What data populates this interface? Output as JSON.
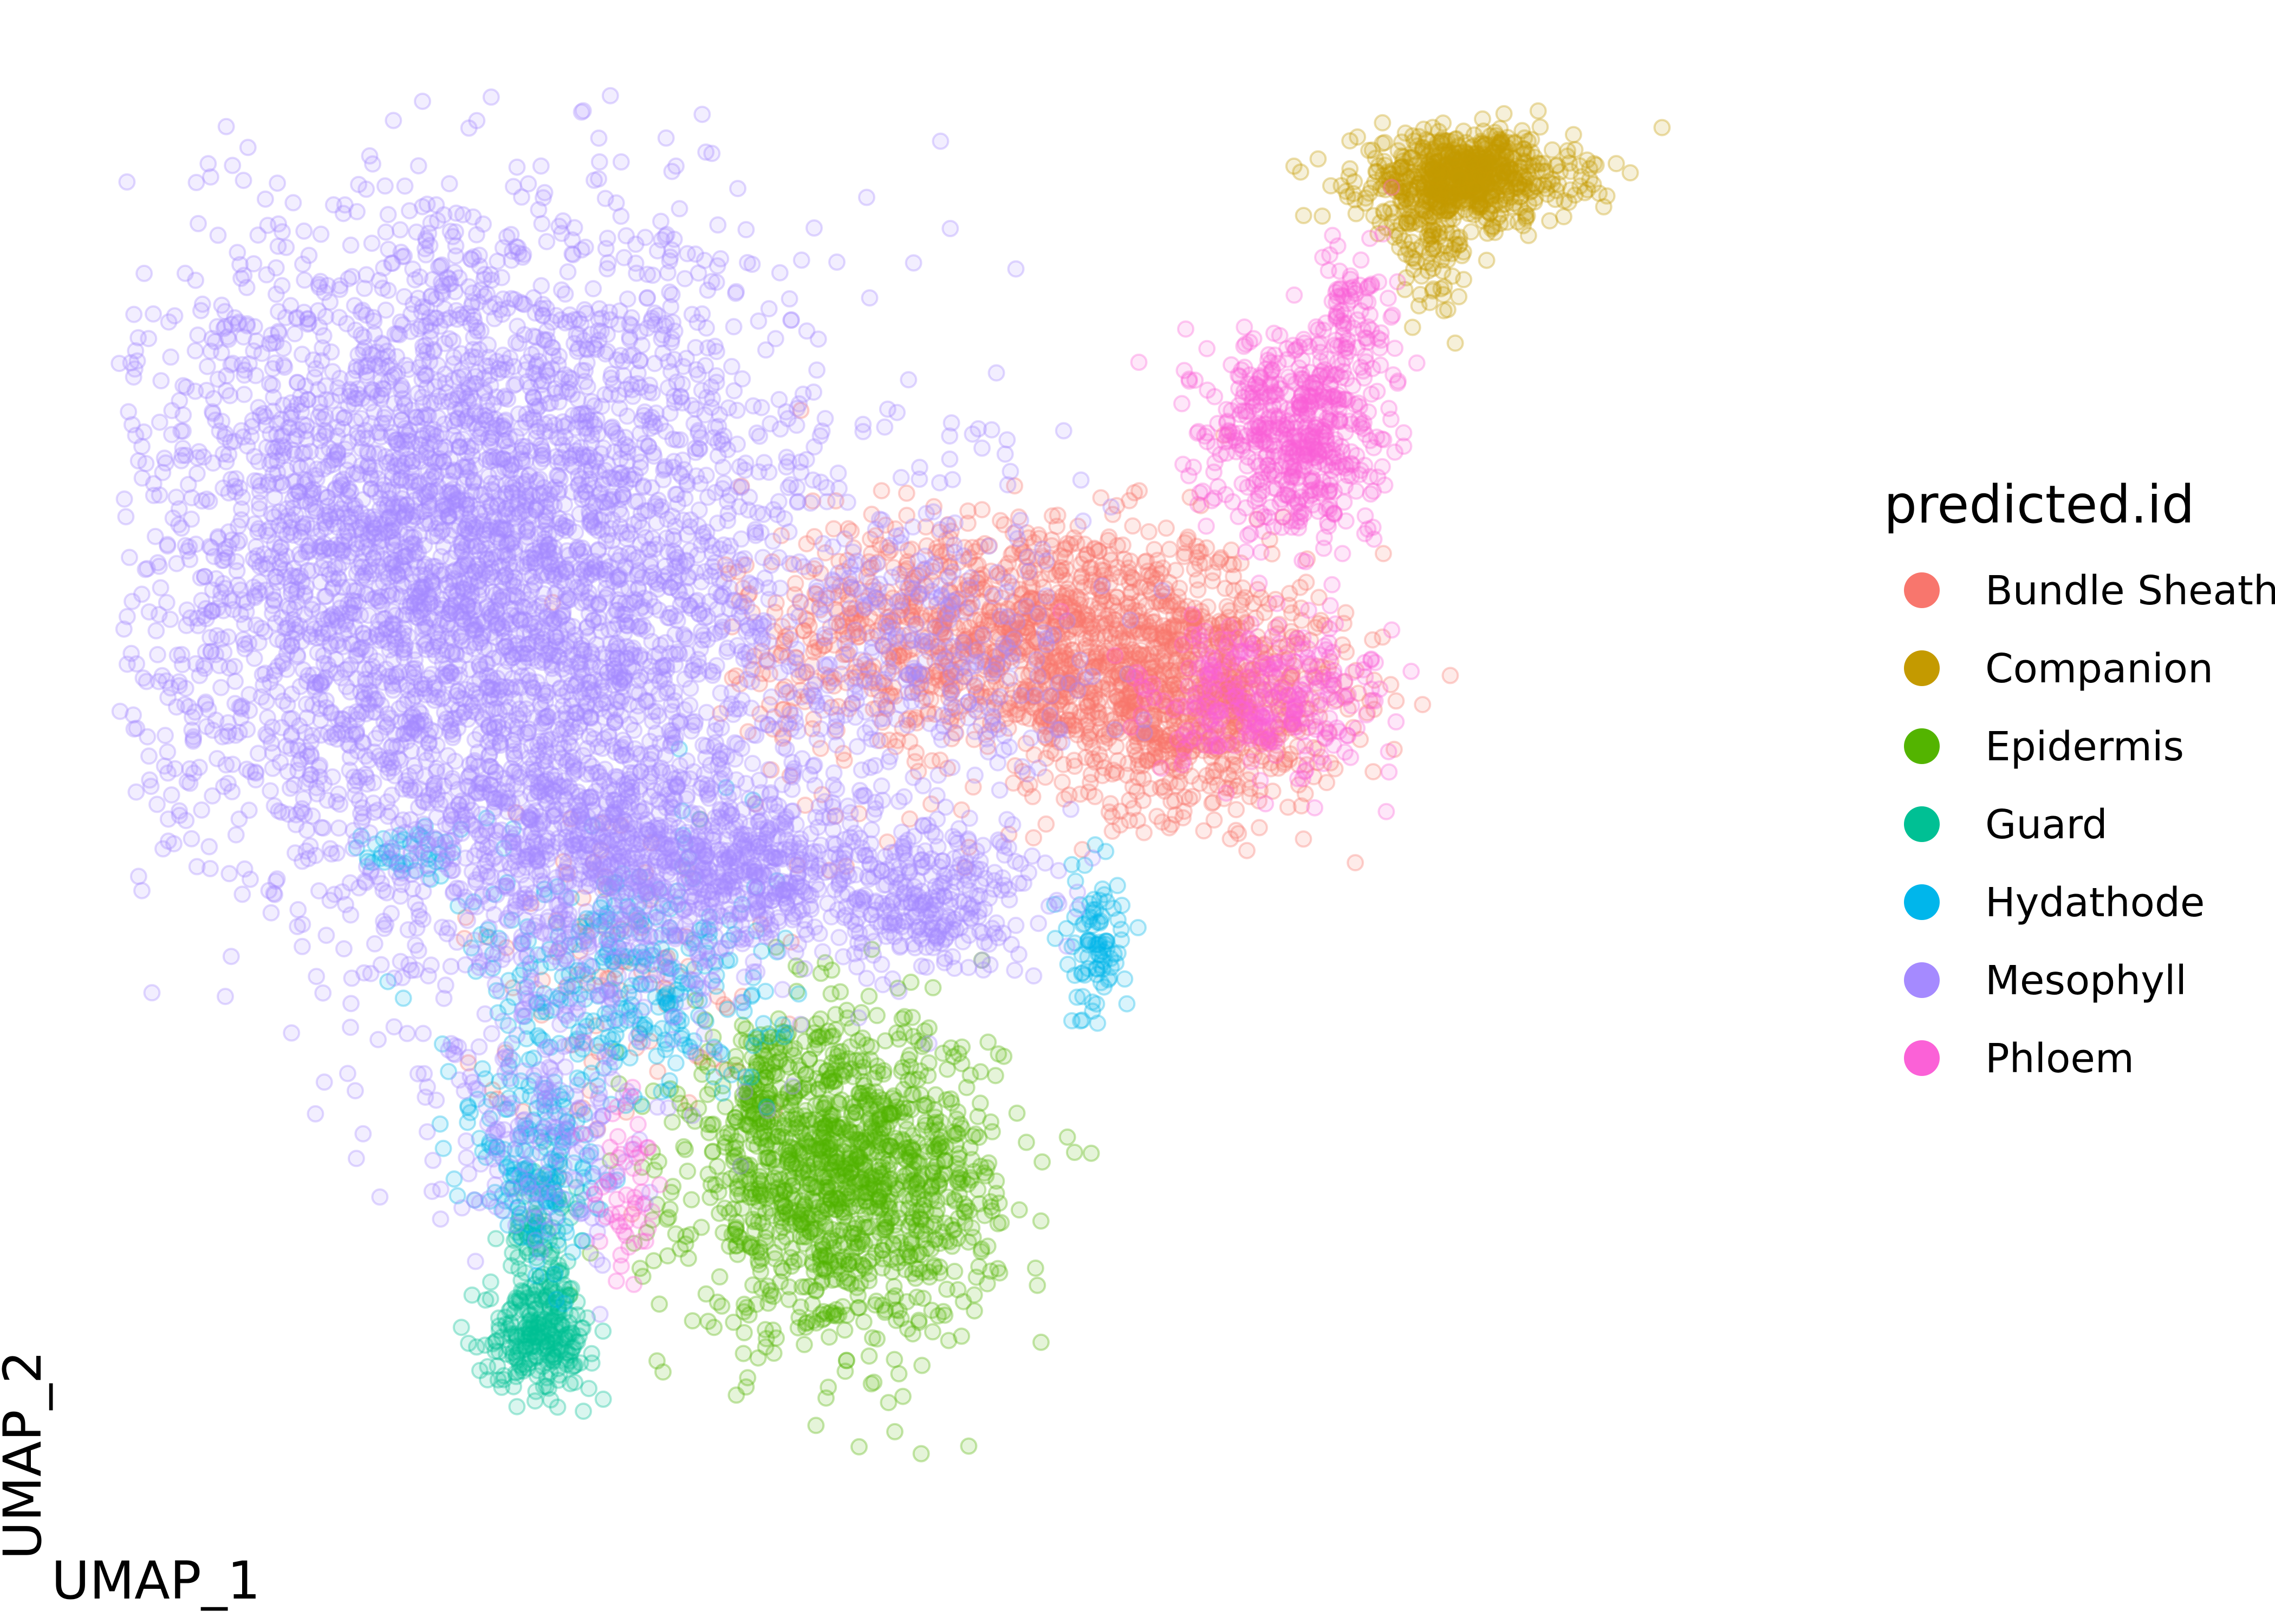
{
  "chart_data": {
    "type": "scatter",
    "title": "",
    "xlabel": "UMAP_1",
    "ylabel": "UMAP_2",
    "xlim": [
      0,
      100
    ],
    "ylim": [
      0,
      100
    ],
    "grid": false,
    "point_alpha": 0.15,
    "legend": {
      "title": "predicted.id",
      "placement": "right"
    },
    "series": [
      {
        "name": "Bundle Sheath",
        "color": "#F8766D",
        "clusters": [
          {
            "cx": 54,
            "cy": 62,
            "sx": 7,
            "sy": 4,
            "n": 900
          },
          {
            "cx": 63,
            "cy": 57,
            "sx": 5,
            "sy": 4,
            "n": 900
          },
          {
            "cx": 45,
            "cy": 61,
            "sx": 4,
            "sy": 6,
            "n": 180
          },
          {
            "cx": 30,
            "cy": 38,
            "sx": 5,
            "sy": 6,
            "n": 90
          }
        ]
      },
      {
        "name": "Companion",
        "color": "#C49A00",
        "clusters": [
          {
            "cx": 80,
            "cy": 94,
            "sx": 3.2,
            "sy": 1.6,
            "n": 650
          },
          {
            "cx": 78,
            "cy": 90,
            "sx": 1.5,
            "sy": 2.5,
            "n": 120
          }
        ]
      },
      {
        "name": "Epidermis",
        "color": "#53B400",
        "clusters": [
          {
            "cx": 43,
            "cy": 23,
            "sx": 4.5,
            "sy": 5.5,
            "n": 1300
          },
          {
            "cx": 38,
            "cy": 30,
            "sx": 0.8,
            "sy": 2,
            "n": 60
          }
        ]
      },
      {
        "name": "Guard",
        "color": "#00C094",
        "clusters": [
          {
            "cx": 25,
            "cy": 12,
            "sx": 1.6,
            "sy": 1.8,
            "n": 220
          },
          {
            "cx": 25,
            "cy": 18,
            "sx": 1,
            "sy": 3,
            "n": 120
          }
        ]
      },
      {
        "name": "Hydathode",
        "color": "#00B6EB",
        "clusters": [
          {
            "cx": 30,
            "cy": 37,
            "sx": 4.5,
            "sy": 5,
            "n": 320
          },
          {
            "cx": 25,
            "cy": 24,
            "sx": 1.8,
            "sy": 4,
            "n": 160
          },
          {
            "cx": 58,
            "cy": 40,
            "sx": 1,
            "sy": 3,
            "n": 90
          },
          {
            "cx": 17,
            "cy": 46,
            "sx": 1.2,
            "sy": 1,
            "n": 40
          }
        ]
      },
      {
        "name": "Mesophyll",
        "color": "#A58AFF",
        "clusters": [
          {
            "cx": 21,
            "cy": 67,
            "sx": 10,
            "sy": 12,
            "n": 4200
          },
          {
            "cx": 29,
            "cy": 46,
            "sx": 6,
            "sy": 6,
            "n": 900
          },
          {
            "cx": 38,
            "cy": 45,
            "sx": 3,
            "sy": 2.5,
            "n": 300
          },
          {
            "cx": 48,
            "cy": 43,
            "sx": 3.5,
            "sy": 2.5,
            "n": 300
          },
          {
            "cx": 25,
            "cy": 26,
            "sx": 3,
            "sy": 4,
            "n": 180
          },
          {
            "cx": 48,
            "cy": 60,
            "sx": 5,
            "sy": 6,
            "n": 300
          }
        ]
      },
      {
        "name": "Phloem",
        "color": "#FB61D7",
        "clusters": [
          {
            "cx": 70,
            "cy": 76,
            "sx": 2.6,
            "sy": 3.5,
            "n": 520
          },
          {
            "cx": 68,
            "cy": 57,
            "sx": 3.5,
            "sy": 3,
            "n": 300
          },
          {
            "cx": 73,
            "cy": 84,
            "sx": 1.2,
            "sy": 3,
            "n": 80
          },
          {
            "cx": 30,
            "cy": 22,
            "sx": 1,
            "sy": 3,
            "n": 50
          }
        ]
      }
    ]
  }
}
